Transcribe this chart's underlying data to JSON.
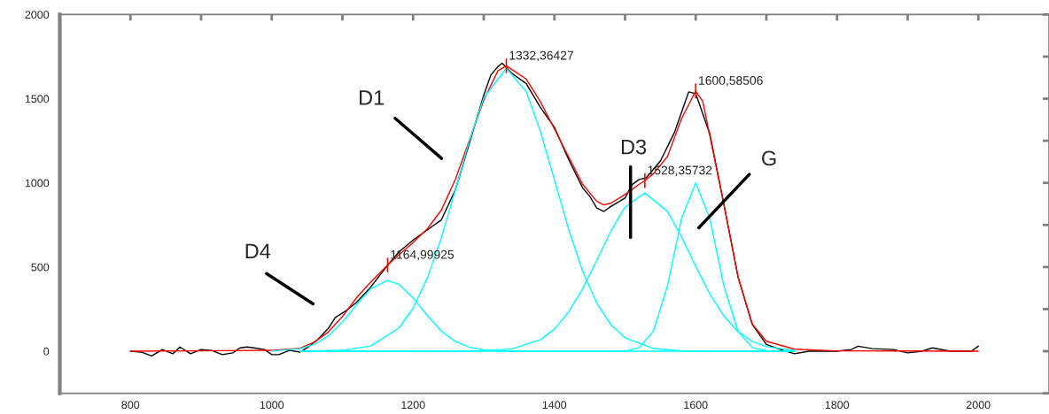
{
  "chart_data": {
    "type": "line",
    "series": [
      {
        "color": "#000000",
        "x": [
          800,
          815,
          830,
          845,
          860,
          870,
          885,
          900,
          915,
          930,
          945,
          955,
          965,
          975,
          990,
          1000,
          1010,
          1025,
          1040,
          1050,
          1065,
          1080,
          1090,
          1105,
          1120,
          1140,
          1160,
          1180,
          1200,
          1220,
          1240,
          1260,
          1280,
          1300,
          1310,
          1320,
          1326,
          1340,
          1360,
          1380,
          1400,
          1420,
          1440,
          1450,
          1460,
          1470,
          1480,
          1500,
          1510,
          1520,
          1530,
          1550,
          1570,
          1590,
          1600,
          1620,
          1640,
          1660,
          1680,
          1700,
          1720,
          1740,
          1760,
          1800,
          1820,
          1830,
          1850,
          1880,
          1900,
          1920,
          1935,
          1960,
          1990,
          2000
        ],
        "values": [
          0,
          -5,
          -28,
          10,
          -15,
          25,
          -15,
          10,
          5,
          -20,
          -10,
          20,
          25,
          20,
          10,
          -20,
          -20,
          5,
          -5,
          20,
          70,
          135,
          200,
          240,
          290,
          380,
          490,
          590,
          660,
          720,
          780,
          960,
          1240,
          1520,
          1640,
          1690,
          1710,
          1650,
          1590,
          1450,
          1330,
          1140,
          970,
          920,
          850,
          830,
          860,
          910,
          990,
          1020,
          1030,
          1130,
          1300,
          1540,
          1530,
          1290,
          870,
          440,
          160,
          40,
          10,
          -15,
          0,
          0,
          10,
          30,
          15,
          10,
          -10,
          0,
          20,
          0,
          0,
          30
        ]
      },
      {
        "color": "#ff0000",
        "x": [
          800,
          1000,
          1040,
          1060,
          1080,
          1100,
          1120,
          1140,
          1164,
          1180,
          1200,
          1220,
          1240,
          1260,
          1280,
          1300,
          1320,
          1332,
          1360,
          1380,
          1400,
          1420,
          1440,
          1460,
          1470,
          1480,
          1500,
          1520,
          1528,
          1540,
          1560,
          1580,
          1600,
          1610,
          1620,
          1640,
          1660,
          1680,
          1700,
          1740,
          1800,
          2000
        ],
        "values": [
          0,
          5,
          18,
          53,
          114,
          206,
          318,
          410,
          512,
          573,
          645,
          726,
          838,
          1022,
          1257,
          1491,
          1665,
          1695,
          1617,
          1484,
          1320,
          1156,
          992,
          890,
          869,
          879,
          931,
          992,
          1013,
          1054,
          1156,
          1382,
          1546,
          1484,
          1279,
          869,
          439,
          162,
          59,
          12,
          2,
          0
        ]
      },
      {
        "color": "#00ffff",
        "x": [
          1000,
          1040,
          1060,
          1080,
          1100,
          1120,
          1140,
          1164,
          1180,
          1200,
          1220,
          1240,
          1260,
          1280,
          1300,
          1340,
          1740
        ],
        "values": [
          1,
          15,
          40,
          91,
          173,
          276,
          371,
          420,
          397,
          317,
          213,
          120,
          57,
          23,
          8,
          0,
          0
        ]
      },
      {
        "color": "#00ffff",
        "x": [
          1040,
          1100,
          1140,
          1180,
          1200,
          1220,
          1240,
          1260,
          1280,
          1300,
          1332,
          1360,
          1380,
          1400,
          1420,
          1440,
          1460,
          1480,
          1500,
          1540,
          1580,
          1620,
          1740
        ],
        "values": [
          0,
          5,
          31,
          138,
          255,
          433,
          673,
          959,
          1255,
          1504,
          1680,
          1543,
          1310,
          1019,
          727,
          476,
          286,
          157,
          80,
          16,
          2,
          0,
          0
        ]
      },
      {
        "color": "#00ffff",
        "x": [
          1040,
          1300,
          1340,
          1380,
          1400,
          1420,
          1440,
          1460,
          1480,
          1500,
          1528,
          1560,
          1580,
          1600,
          1620,
          1640,
          1660,
          1680,
          1700,
          1740
        ],
        "values": [
          0,
          2,
          14,
          68,
          131,
          232,
          371,
          540,
          713,
          856,
          940,
          831,
          679,
          505,
          340,
          209,
          116,
          59,
          27,
          4
        ]
      },
      {
        "color": "#00ffff",
        "x": [
          1040,
          1480,
          1500,
          1520,
          1540,
          1560,
          1580,
          1600,
          1620,
          1640,
          1660,
          1680,
          1700,
          1740
        ],
        "values": [
          0,
          0,
          1,
          22,
          118,
          386,
          788,
          1000,
          788,
          386,
          118,
          22,
          3,
          0
        ]
      }
    ],
    "xlim": [
      700,
      2100
    ],
    "xticks": [
      800,
      {
        "value": 900,
        "label": null
      },
      1000,
      {
        "value": 1100,
        "label": null
      },
      1200,
      {
        "value": 1300,
        "label": null
      },
      1400,
      {
        "value": 1500,
        "label": null
      },
      1600,
      {
        "value": 1700,
        "label": null
      },
      1800,
      {
        "value": 1900,
        "label": null
      },
      2000
    ],
    "ylim": [
      -250,
      2000
    ],
    "yticks": [
      {
        "value": -250,
        "label": null
      },
      0,
      {
        "value": 250,
        "label": null
      },
      500,
      {
        "value": 750,
        "label": null
      },
      1000,
      {
        "value": 1250,
        "label": null
      },
      1500,
      {
        "value": 1750,
        "label": null
      },
      2000
    ],
    "grid": false,
    "legend": false,
    "annotations": [
      {
        "text": "1164,99925",
        "x": 1164,
        "y": 512
      },
      {
        "text": "1332,36427",
        "x": 1332,
        "y": 1695
      },
      {
        "text": "1528,35732",
        "x": 1528,
        "y": 1013
      },
      {
        "text": "1600,58506",
        "x": 1600,
        "y": 1546
      },
      "D4",
      "D1",
      "D3",
      "G"
    ]
  }
}
